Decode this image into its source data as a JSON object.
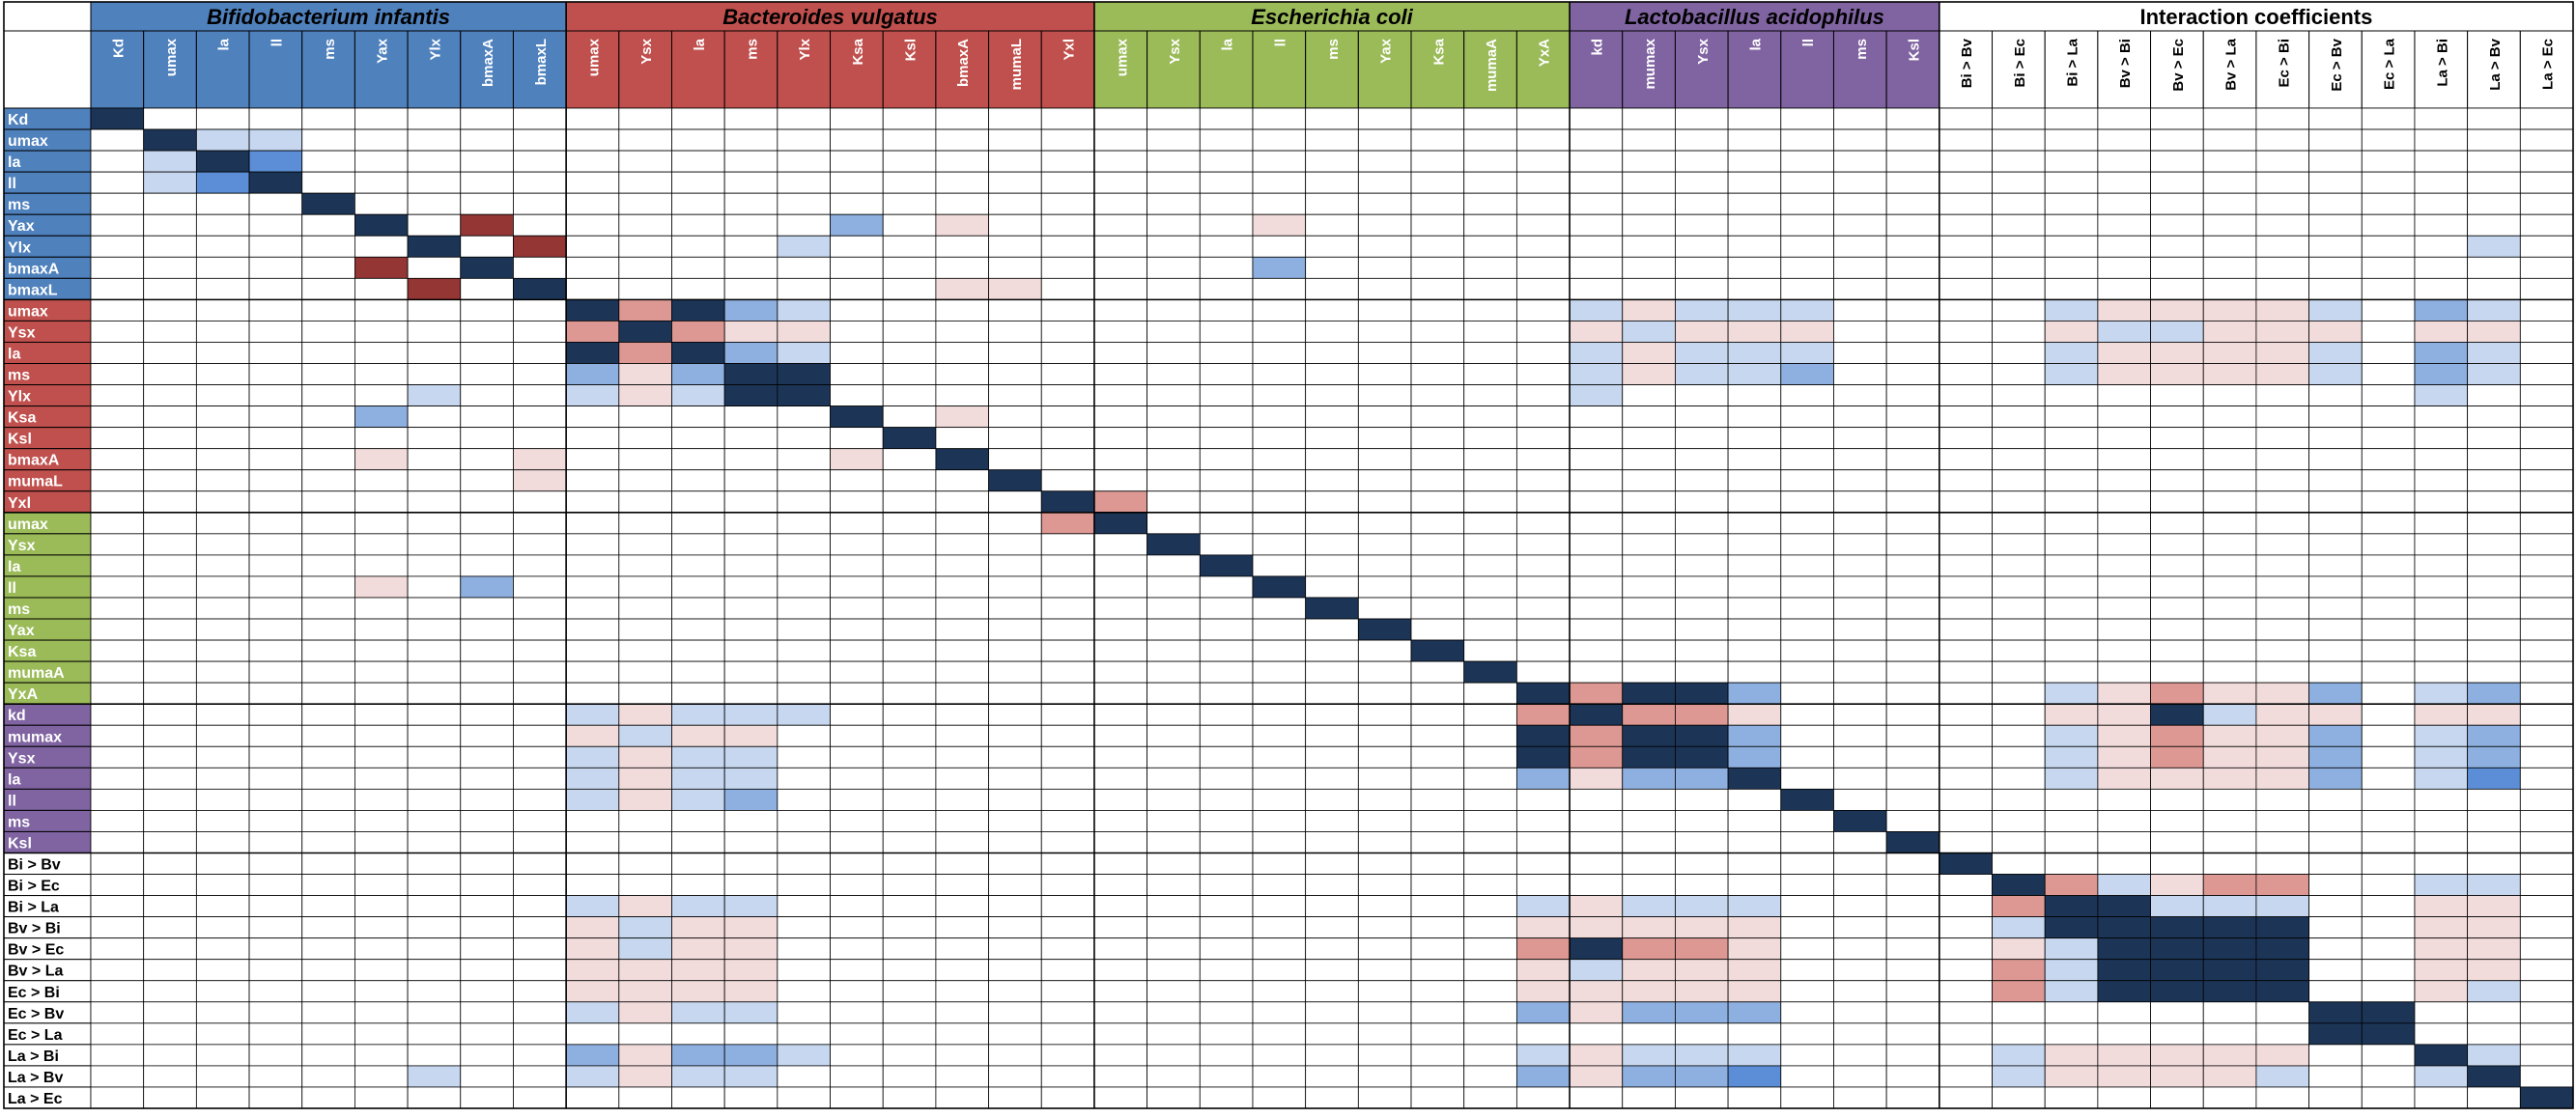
{
  "chart_data": {
    "type": "heatmap",
    "title": "",
    "grid": true,
    "groups": [
      {
        "name": "Bifidobacterium infantis",
        "color": "#4f81bd",
        "params": [
          "Kd",
          "umax",
          "la",
          "ll",
          "ms",
          "Yax",
          "Ylx",
          "bmaxA",
          "bmaxL"
        ]
      },
      {
        "name": "Bacteroides vulgatus",
        "color": "#c0504d",
        "params": [
          "umax",
          "Ysx",
          "la",
          "ms",
          "Ylx",
          "Ksa",
          "Ksl",
          "bmaxA",
          "mumaL",
          "Yxl"
        ]
      },
      {
        "name": "Escherichia coli",
        "color": "#9bbb59",
        "params": [
          "umax",
          "Ysx",
          "la",
          "ll",
          "ms",
          "Yax",
          "Ksa",
          "mumaA",
          "YxA"
        ]
      },
      {
        "name": "Lactobacillus acidophilus",
        "color": "#8064a2",
        "params": [
          "kd",
          "mumax",
          "Ysx",
          "la",
          "ll",
          "ms",
          "Ksl"
        ]
      },
      {
        "name": "Interaction coefficients",
        "color": "#ffffff",
        "params": [
          "Bi > Bv",
          "Bi > Ec",
          "Bi > La",
          "Bv > Bi",
          "Bv > Ec",
          "Bv > La",
          "Ec > Bi",
          "Ec > Bv",
          "Ec > La",
          "La > Bi",
          "La > Bv",
          "La > Ec"
        ]
      }
    ],
    "color_scale": {
      "strong_positive": "#1c3557",
      "positive_high": "#5b8ed6",
      "positive_mid": "#8eb0e0",
      "positive_low": "#c6d7ef",
      "neutral": "#ffffff",
      "negative_low": "#f2dcdb",
      "negative_mid": "#dd9893",
      "strong_negative": "#943634"
    },
    "levels": [
      4,
      3,
      2,
      1,
      0,
      -1,
      -2,
      -3
    ],
    "cells_note": "symmetric matrix; each entry is [row, col, level]; diagonal = 4",
    "cells": [
      [
        1,
        2,
        1
      ],
      [
        1,
        3,
        1
      ],
      [
        2,
        3,
        3
      ],
      [
        5,
        14,
        2
      ],
      [
        5,
        7,
        -3
      ],
      [
        5,
        26,
        0
      ],
      [
        6,
        8,
        -3
      ],
      [
        6,
        13,
        1
      ],
      [
        6,
        45,
        1
      ],
      [
        5,
        16,
        -1
      ],
      [
        5,
        22,
        -1
      ],
      [
        7,
        22,
        2
      ],
      [
        8,
        16,
        -1
      ],
      [
        8,
        17,
        -1
      ],
      [
        9,
        10,
        -2
      ],
      [
        9,
        11,
        4
      ],
      [
        9,
        12,
        2
      ],
      [
        9,
        13,
        1
      ],
      [
        10,
        11,
        -2
      ],
      [
        10,
        12,
        -1
      ],
      [
        10,
        13,
        -1
      ],
      [
        11,
        12,
        2
      ],
      [
        11,
        13,
        1
      ],
      [
        12,
        13,
        4
      ],
      [
        13,
        12,
        4
      ],
      [
        18,
        19,
        -2
      ],
      [
        14,
        16,
        -1
      ],
      [
        9,
        28,
        1
      ],
      [
        9,
        29,
        -1
      ],
      [
        9,
        30,
        1
      ],
      [
        9,
        31,
        1
      ],
      [
        9,
        32,
        1
      ],
      [
        10,
        28,
        -1
      ],
      [
        10,
        29,
        1
      ],
      [
        10,
        30,
        -1
      ],
      [
        10,
        31,
        -1
      ],
      [
        10,
        32,
        -1
      ],
      [
        11,
        28,
        1
      ],
      [
        11,
        29,
        -1
      ],
      [
        11,
        30,
        1
      ],
      [
        11,
        31,
        1
      ],
      [
        11,
        32,
        1
      ],
      [
        12,
        28,
        1
      ],
      [
        12,
        29,
        -1
      ],
      [
        12,
        30,
        1
      ],
      [
        12,
        31,
        1
      ],
      [
        12,
        32,
        2
      ],
      [
        13,
        28,
        1
      ],
      [
        9,
        37,
        1
      ],
      [
        9,
        38,
        -1
      ],
      [
        9,
        39,
        -1
      ],
      [
        9,
        40,
        -1
      ],
      [
        9,
        41,
        -1
      ],
      [
        9,
        42,
        1
      ],
      [
        10,
        37,
        -1
      ],
      [
        10,
        38,
        1
      ],
      [
        10,
        39,
        1
      ],
      [
        10,
        40,
        -1
      ],
      [
        10,
        41,
        -1
      ],
      [
        10,
        42,
        -1
      ],
      [
        11,
        37,
        1
      ],
      [
        11,
        38,
        -1
      ],
      [
        11,
        39,
        -1
      ],
      [
        11,
        40,
        -1
      ],
      [
        11,
        41,
        -1
      ],
      [
        11,
        42,
        1
      ],
      [
        12,
        37,
        1
      ],
      [
        12,
        38,
        -1
      ],
      [
        12,
        39,
        -1
      ],
      [
        12,
        40,
        -1
      ],
      [
        12,
        41,
        -1
      ],
      [
        12,
        42,
        1
      ],
      [
        9,
        44,
        2
      ],
      [
        9,
        45,
        1
      ],
      [
        9,
        47,
        1
      ],
      [
        9,
        48,
        -1
      ],
      [
        9,
        54,
        3
      ],
      [
        9,
        55,
        1
      ],
      [
        10,
        44,
        -1
      ],
      [
        10,
        45,
        -1
      ],
      [
        10,
        47,
        -1
      ],
      [
        10,
        48,
        2
      ],
      [
        10,
        54,
        -2
      ],
      [
        10,
        55,
        -1
      ],
      [
        11,
        44,
        2
      ],
      [
        11,
        45,
        1
      ],
      [
        11,
        47,
        2
      ],
      [
        11,
        48,
        -1
      ],
      [
        11,
        54,
        3
      ],
      [
        11,
        55,
        1
      ],
      [
        12,
        44,
        2
      ],
      [
        12,
        45,
        1
      ],
      [
        12,
        46,
        0
      ],
      [
        12,
        47,
        1
      ],
      [
        12,
        48,
        -1
      ],
      [
        12,
        54,
        1
      ],
      [
        12,
        55,
        1
      ],
      [
        13,
        44,
        1
      ],
      [
        13,
        48,
        -1
      ],
      [
        27,
        28,
        -2
      ],
      [
        27,
        29,
        4
      ],
      [
        27,
        30,
        4
      ],
      [
        27,
        31,
        2
      ],
      [
        28,
        29,
        -2
      ],
      [
        28,
        30,
        -2
      ],
      [
        28,
        31,
        -1
      ],
      [
        29,
        30,
        4
      ],
      [
        29,
        31,
        2
      ],
      [
        30,
        31,
        2
      ],
      [
        24,
        26,
        0
      ],
      [
        27,
        37,
        1
      ],
      [
        27,
        38,
        -1
      ],
      [
        27,
        39,
        -2
      ],
      [
        27,
        40,
        -1
      ],
      [
        27,
        41,
        -1
      ],
      [
        27,
        42,
        2
      ],
      [
        28,
        37,
        -1
      ],
      [
        28,
        38,
        -1
      ],
      [
        28,
        39,
        4
      ],
      [
        28,
        40,
        1
      ],
      [
        28,
        41,
        -1
      ],
      [
        28,
        42,
        -1
      ],
      [
        29,
        37,
        1
      ],
      [
        29,
        38,
        -1
      ],
      [
        29,
        39,
        -2
      ],
      [
        29,
        40,
        -1
      ],
      [
        29,
        41,
        -1
      ],
      [
        29,
        42,
        2
      ],
      [
        30,
        37,
        1
      ],
      [
        30,
        38,
        -1
      ],
      [
        30,
        39,
        -2
      ],
      [
        30,
        40,
        -1
      ],
      [
        30,
        41,
        -1
      ],
      [
        30,
        42,
        2
      ],
      [
        31,
        37,
        1
      ],
      [
        31,
        38,
        -1
      ],
      [
        31,
        39,
        -1
      ],
      [
        31,
        40,
        -1
      ],
      [
        31,
        41,
        -1
      ],
      [
        31,
        42,
        2
      ],
      [
        27,
        44,
        1
      ],
      [
        27,
        45,
        2
      ],
      [
        27,
        47,
        2
      ],
      [
        27,
        48,
        2
      ],
      [
        27,
        49,
        -1
      ],
      [
        27,
        54,
        1
      ],
      [
        27,
        55,
        2
      ],
      [
        28,
        44,
        -1
      ],
      [
        28,
        45,
        -1
      ],
      [
        28,
        47,
        -1
      ],
      [
        28,
        48,
        -1
      ],
      [
        28,
        49,
        -1
      ],
      [
        28,
        54,
        -1
      ],
      [
        28,
        55,
        -1
      ],
      [
        29,
        44,
        1
      ],
      [
        29,
        45,
        2
      ],
      [
        29,
        47,
        2
      ],
      [
        29,
        48,
        2
      ],
      [
        29,
        49,
        -1
      ],
      [
        29,
        54,
        1
      ],
      [
        29,
        55,
        2
      ],
      [
        30,
        44,
        1
      ],
      [
        30,
        45,
        2
      ],
      [
        30,
        47,
        2
      ],
      [
        30,
        48,
        2
      ],
      [
        30,
        49,
        -1
      ],
      [
        30,
        54,
        1
      ],
      [
        30,
        55,
        2
      ],
      [
        31,
        44,
        1
      ],
      [
        31,
        45,
        3
      ],
      [
        31,
        47,
        2
      ],
      [
        31,
        48,
        1
      ],
      [
        31,
        49,
        -1
      ],
      [
        31,
        54,
        2
      ],
      [
        31,
        55,
        1
      ],
      [
        36,
        37,
        -2
      ],
      [
        36,
        38,
        1
      ],
      [
        36,
        39,
        -1
      ],
      [
        36,
        40,
        -2
      ],
      [
        36,
        41,
        -2
      ],
      [
        37,
        38,
        4
      ],
      [
        37,
        39,
        1
      ],
      [
        37,
        40,
        1
      ],
      [
        37,
        41,
        1
      ],
      [
        38,
        39,
        4
      ],
      [
        38,
        40,
        4
      ],
      [
        38,
        41,
        4
      ],
      [
        39,
        40,
        4
      ],
      [
        39,
        41,
        4
      ],
      [
        40,
        41,
        4
      ],
      [
        39,
        41,
        4
      ],
      [
        40,
        39,
        4
      ],
      [
        42,
        43,
        4
      ],
      [
        36,
        44,
        1
      ],
      [
        36,
        45,
        1
      ],
      [
        36,
        47,
        1
      ],
      [
        36,
        48,
        1
      ],
      [
        36,
        49,
        1
      ],
      [
        36,
        54,
        1
      ],
      [
        36,
        55,
        1
      ],
      [
        37,
        44,
        -1
      ],
      [
        37,
        45,
        -1
      ],
      [
        37,
        47,
        -1
      ],
      [
        37,
        48,
        -1
      ],
      [
        37,
        49,
        2
      ],
      [
        37,
        54,
        -1
      ],
      [
        37,
        55,
        -1
      ],
      [
        38,
        44,
        -1
      ],
      [
        38,
        45,
        -1
      ],
      [
        38,
        47,
        -1
      ],
      [
        38,
        48,
        -1
      ],
      [
        38,
        49,
        2
      ],
      [
        38,
        54,
        -1
      ],
      [
        38,
        55,
        -1
      ],
      [
        39,
        44,
        -1
      ],
      [
        39,
        45,
        -1
      ],
      [
        39,
        47,
        -1
      ],
      [
        39,
        48,
        -1
      ],
      [
        39,
        49,
        2
      ],
      [
        39,
        54,
        -1
      ],
      [
        39,
        55,
        -1
      ],
      [
        40,
        44,
        -1
      ],
      [
        40,
        45,
        -1
      ],
      [
        40,
        47,
        -1
      ],
      [
        40,
        48,
        -1
      ],
      [
        40,
        49,
        2
      ],
      [
        40,
        54,
        -1
      ],
      [
        40,
        55,
        -1
      ],
      [
        41,
        44,
        -1
      ],
      [
        41,
        45,
        1
      ],
      [
        41,
        47,
        2
      ],
      [
        41,
        48,
        1
      ],
      [
        41,
        49,
        -1
      ],
      [
        41,
        54,
        1
      ],
      [
        41,
        55,
        1
      ],
      [
        44,
        45,
        1
      ],
      [
        44,
        47,
        1
      ],
      [
        44,
        48,
        2
      ],
      [
        44,
        54,
        2
      ],
      [
        44,
        55,
        2
      ],
      [
        45,
        47,
        1
      ],
      [
        45,
        48,
        4
      ],
      [
        45,
        49,
        -1
      ],
      [
        45,
        54,
        2
      ],
      [
        45,
        55,
        1
      ],
      [
        47,
        48,
        1
      ],
      [
        48,
        49,
        -1
      ],
      [
        48,
        54,
        2
      ],
      [
        48,
        55,
        1
      ],
      [
        54,
        55,
        1
      ],
      [
        2,
        53,
        1
      ],
      [
        3,
        53,
        1
      ],
      [
        4,
        50,
        1
      ],
      [
        1,
        50,
        1
      ],
      [
        4,
        52,
        1
      ]
    ]
  }
}
